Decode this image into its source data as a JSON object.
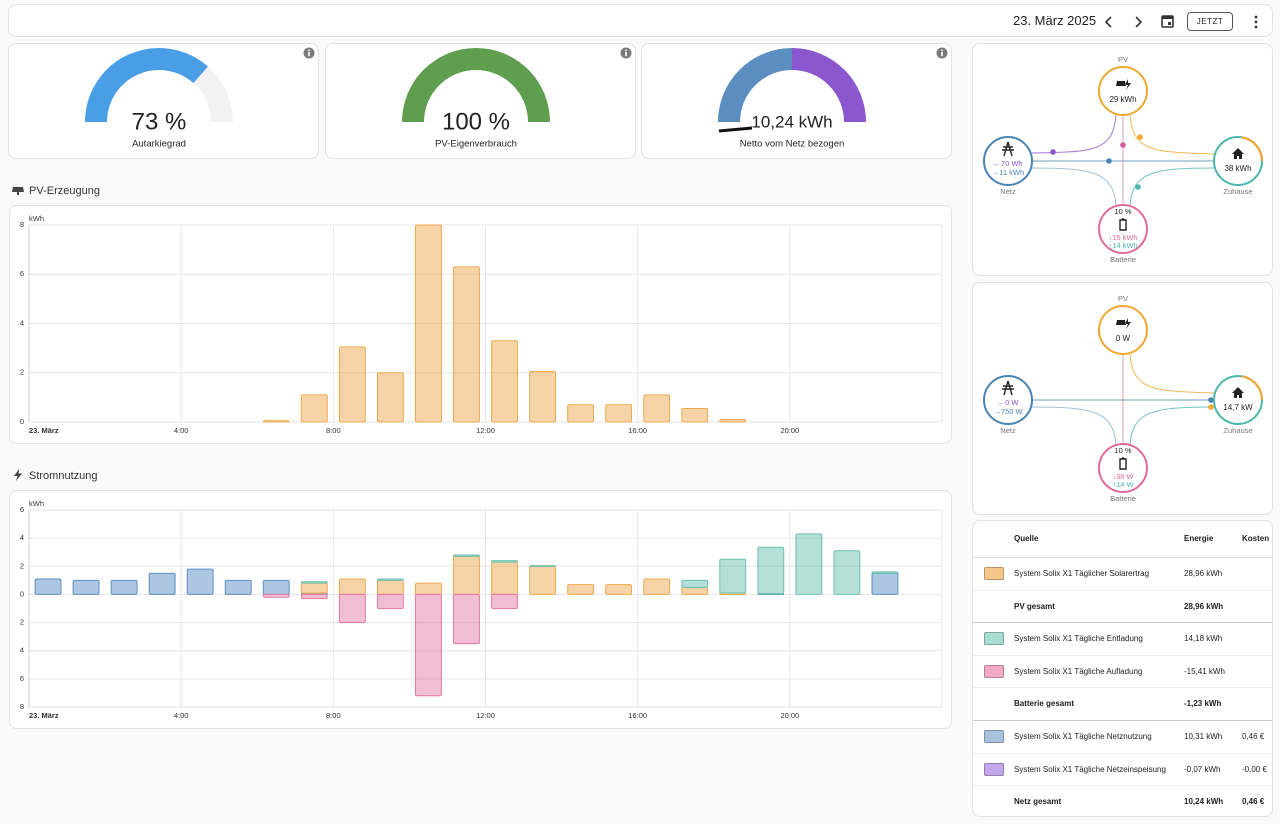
{
  "header": {
    "date": "23. März 2025",
    "now_button": "JETZT"
  },
  "gauges": [
    {
      "value": 73,
      "value_label": "73 %",
      "label": "Autarkiegrad",
      "color": "#4a9ee6"
    },
    {
      "value": 100,
      "value_label": "100 %",
      "label": "PV-Eigenverbrauch",
      "color": "#5e9e4e"
    },
    {
      "value": 10.24,
      "value_label": "10,24 kWh",
      "label": "Netto vom Netz bezogen"
    }
  ],
  "chart_data": [
    {
      "type": "bar",
      "title": "PV-Erzeugung",
      "y_unit": "kWh",
      "categories": [
        "23. März",
        null,
        null,
        null,
        "4:00",
        null,
        null,
        null,
        "8:00",
        null,
        null,
        null,
        "12:00",
        null,
        null,
        null,
        "16:00",
        null,
        null,
        null,
        "20:00",
        null,
        null,
        null
      ],
      "values": [
        null,
        null,
        null,
        null,
        null,
        null,
        0.05,
        1.1,
        3.05,
        2,
        8,
        6.3,
        3.3,
        2.05,
        0.7,
        0.7,
        1.1,
        0.55,
        0.1,
        null,
        null,
        null,
        null,
        null
      ],
      "color": "#eea94f",
      "ylim": [
        0,
        8
      ],
      "yticks": [
        0,
        2,
        4,
        6,
        8
      ],
      "grid": true
    },
    {
      "type": "bar",
      "stacked": true,
      "title": "Stromnutzung",
      "y_unit": "kWh",
      "categories": [
        "23. März",
        null,
        null,
        null,
        "4:00",
        null,
        null,
        null,
        "8:00",
        null,
        null,
        null,
        "12:00",
        null,
        null,
        null,
        "16:00",
        null,
        null,
        null,
        "20:00",
        null,
        null,
        null
      ],
      "series": [
        {
          "color": "#5b8fc7",
          "values": [
            1.1,
            1,
            1,
            1.5,
            1.8,
            1,
            1,
            0.1,
            null,
            null,
            null,
            null,
            null,
            null,
            null,
            null,
            null,
            null,
            null,
            0.05,
            null,
            null,
            1.5,
            null
          ]
        },
        {
          "color": "#eea94f",
          "values": [
            null,
            null,
            null,
            null,
            null,
            null,
            null,
            0.7,
            1.1,
            1,
            0.8,
            2.7,
            2.3,
            2,
            0.7,
            0.7,
            1.1,
            0.5,
            0.1,
            null,
            null,
            null,
            null,
            null
          ]
        },
        {
          "color": "#6cc1b0",
          "values": [
            null,
            null,
            null,
            null,
            null,
            null,
            null,
            0.1,
            null,
            0.1,
            null,
            0.1,
            0.1,
            0.05,
            null,
            null,
            null,
            0.5,
            2.4,
            3.3,
            4.3,
            3.1,
            0.1,
            null
          ]
        },
        {
          "color": "#e27ba5",
          "values": [
            null,
            null,
            null,
            null,
            null,
            null,
            -0.2,
            -0.3,
            -2,
            -1,
            -7.2,
            -3.5,
            -1,
            null,
            null,
            null,
            null,
            null,
            null,
            null,
            null,
            null,
            null,
            null
          ]
        }
      ],
      "ylim": [
        -8,
        6
      ],
      "yticks": [
        {
          "value": -8,
          "label": "8"
        },
        {
          "value": -6,
          "label": "6"
        },
        {
          "value": -4,
          "label": "4"
        },
        {
          "value": -2,
          "label": "2"
        },
        0,
        2,
        4,
        6
      ],
      "grid": true
    }
  ],
  "energy_flow": [
    {
      "pv": {
        "label": "PV",
        "value": "29 kWh"
      },
      "grid": {
        "label": "Netz",
        "out": "←70 Wh",
        "in": "→11 kWh"
      },
      "home": {
        "label": "Zuhause",
        "value": "38 kWh"
      },
      "battery": {
        "label": "Batterie",
        "soc": "10 %",
        "in": "↓15 kWh",
        "out": "↑14 kWh"
      }
    },
    {
      "pv": {
        "label": "PV",
        "value": "0 W"
      },
      "grid": {
        "label": "Netz",
        "out": "←0 W",
        "in": "→750 W"
      },
      "home": {
        "label": "Zuhause",
        "value": "14,7 kW"
      },
      "battery": {
        "label": "Batterie",
        "soc": "10 %",
        "in": "↓36 W",
        "out": "↑14 W"
      }
    }
  ],
  "sources": {
    "header": [
      "Quelle",
      "Energie",
      "Kosten"
    ],
    "rows": [
      {
        "color": "#f6c58a",
        "name": "System Solix X1 Täglicher Solarertrag",
        "energy": "28,96 kWh"
      },
      {
        "total": true,
        "name": "PV gesamt",
        "energy": "28,96 kWh"
      },
      {
        "color": "#a8ddd2",
        "name": "System Solix X1 Tägliche Entladung",
        "energy": "14,18 kWh"
      },
      {
        "color": "#f3aac6",
        "name": "System Solix X1 Tägliche Aufladung",
        "energy": "-15,41 kWh"
      },
      {
        "total": true,
        "name": "Batterie gesamt",
        "energy": "-1,23 kWh"
      },
      {
        "color": "#a9c3df",
        "name": "System Solix X1 Tägliche Netznutzung",
        "energy": "10,31 kWh",
        "cost": "0,46 €"
      },
      {
        "color": "#c3a6ec",
        "name": "System Solix X1 Tägliche Netzeinspeisung",
        "energy": "-0,07 kWh",
        "cost": "-0,00 €"
      },
      {
        "total": true,
        "name": "Netz gesamt",
        "energy": "10,24 kWh",
        "cost": "0,46 €"
      }
    ]
  }
}
